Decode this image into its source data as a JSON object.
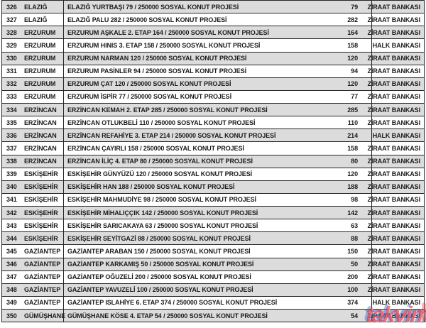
{
  "colors": {
    "row_alt_bg": "#dcdcdc",
    "row_bg": "#ffffff",
    "border": "#262626",
    "text": "#1b1b1b",
    "watermark_red": "#de2630",
    "watermark_blue": "#4664d2"
  },
  "watermark": {
    "text": "takvim"
  },
  "table": {
    "columns": [
      "no",
      "city",
      "project",
      "units",
      "bank"
    ],
    "rows": [
      {
        "no": "326",
        "city": "ELAZIĞ",
        "project": "ELAZIĞ YURTBAŞI 79 / 250000 SOSYAL KONUT PROJESİ",
        "units": "79",
        "bank": "ZİRAAT BANKASI"
      },
      {
        "no": "327",
        "city": "ELAZIĞ",
        "project": "ELAZIĞ PALU 282 / 250000 SOSYAL KONUT PROJESİ",
        "units": "282",
        "bank": "ZİRAAT BANKASI"
      },
      {
        "no": "328",
        "city": "ERZURUM",
        "project": "ERZURUM AŞKALE 2. ETAP 164 / 250000 SOSYAL KONUT PROJESİ",
        "units": "164",
        "bank": "ZİRAAT BANKASI"
      },
      {
        "no": "329",
        "city": "ERZURUM",
        "project": "ERZURUM HINIS 3. ETAP 158 / 250000 SOSYAL KONUT PROJESİ",
        "units": "158",
        "bank": "HALK BANKASI"
      },
      {
        "no": "330",
        "city": "ERZURUM",
        "project": "ERZURUM NARMAN 120 / 250000 SOSYAL KONUT PROJESİ",
        "units": "120",
        "bank": "ZİRAAT BANKASI"
      },
      {
        "no": "331",
        "city": "ERZURUM",
        "project": "ERZURUM PASİNLER 94 / 250000 SOSYAL KONUT PROJESİ",
        "units": "94",
        "bank": "ZİRAAT BANKASI"
      },
      {
        "no": "332",
        "city": "ERZURUM",
        "project": "ERZURUM ÇAT 120 / 250000 SOSYAL KONUT PROJESİ",
        "units": "120",
        "bank": "ZİRAAT BANKASI"
      },
      {
        "no": "333",
        "city": "ERZURUM",
        "project": "ERZURUM İSPİR 77 / 250000 SOSYAL KONUT PROJESİ",
        "units": "77",
        "bank": "ZİRAAT BANKASI"
      },
      {
        "no": "334",
        "city": "ERZİNCAN",
        "project": "ERZİNCAN KEMAH 2. ETAP 285 / 250000 SOSYAL KONUT PROJESİ",
        "units": "285",
        "bank": "ZİRAAT BANKASI"
      },
      {
        "no": "335",
        "city": "ERZİNCAN",
        "project": "ERZİNCAN OTLUKBELİ 110 / 250000 SOSYAL KONUT PROJESİ",
        "units": "110",
        "bank": "ZİRAAT BANKASI"
      },
      {
        "no": "336",
        "city": "ERZİNCAN",
        "project": "ERZİNCAN REFAHİYE 3. ETAP 214 / 250000 SOSYAL KONUT PROJESİ",
        "units": "214",
        "bank": "HALK BANKASI"
      },
      {
        "no": "337",
        "city": "ERZİNCAN",
        "project": "ERZİNCAN ÇAYIRLI 158 / 250000 SOSYAL KONUT PROJESİ",
        "units": "158",
        "bank": "ZİRAAT BANKASI"
      },
      {
        "no": "338",
        "city": "ERZİNCAN",
        "project": "ERZİNCAN İLİÇ 4. ETAP 80 / 250000 SOSYAL KONUT PROJESİ",
        "units": "80",
        "bank": "ZİRAAT BANKASI"
      },
      {
        "no": "339",
        "city": "ESKİŞEHİR",
        "project": "ESKİŞEHİR GÜNYÜZÜ 120 / 250000 SOSYAL KONUT PROJESİ",
        "units": "120",
        "bank": "ZİRAAT BANKASI"
      },
      {
        "no": "340",
        "city": "ESKİŞEHİR",
        "project": "ESKİŞEHİR HAN 188 / 250000 SOSYAL KONUT PROJESİ",
        "units": "188",
        "bank": "ZİRAAT BANKASI"
      },
      {
        "no": "341",
        "city": "ESKİŞEHİR",
        "project": "ESKİŞEHİR MAHMUDİYE 98 / 250000 SOSYAL KONUT PROJESİ",
        "units": "98",
        "bank": "ZİRAAT BANKASI"
      },
      {
        "no": "342",
        "city": "ESKİŞEHİR",
        "project": "ESKİŞEHİR MİHALIÇÇIK 142 / 250000 SOSYAL KONUT PROJESİ",
        "units": "142",
        "bank": "ZİRAAT BANKASI"
      },
      {
        "no": "343",
        "city": "ESKİŞEHİR",
        "project": "ESKİŞEHİR SARICAKAYA 63 / 250000 SOSYAL KONUT PROJESİ",
        "units": "63",
        "bank": "ZİRAAT BANKASI"
      },
      {
        "no": "344",
        "city": "ESKİŞEHİR",
        "project": "ESKİŞEHİR SEYİTGAZİ 88 / 250000 SOSYAL KONUT PROJESİ",
        "units": "88",
        "bank": "ZİRAAT BANKASI"
      },
      {
        "no": "345",
        "city": "GAZİANTEP",
        "project": "GAZİANTEP ARABAN 150 / 250000 SOSYAL KONUT PROJESİ",
        "units": "150",
        "bank": "ZİRAAT BANKASI"
      },
      {
        "no": "346",
        "city": "GAZİANTEP",
        "project": "GAZİANTEP KARKAMIŞ 50 / 250000 SOSYAL KONUT PROJESİ",
        "units": "50",
        "bank": "ZİRAAT BANKASI"
      },
      {
        "no": "347",
        "city": "GAZİANTEP",
        "project": "GAZİANTEP OĞUZELİ 200 / 250000 SOSYAL KONUT PROJESİ",
        "units": "200",
        "bank": "ZİRAAT BANKASI"
      },
      {
        "no": "348",
        "city": "GAZİANTEP",
        "project": "GAZİANTEP YAVUZELİ 100 / 250000 SOSYAL KONUT PROJESİ",
        "units": "100",
        "bank": "ZİRAAT BANKASI"
      },
      {
        "no": "349",
        "city": "GAZİANTEP",
        "project": "GAZİANTEP ISLAHİYE 6. ETAP 374 / 250000 SOSYAL KONUT PROJESİ",
        "units": "374",
        "bank": "HALK BANKASI"
      },
      {
        "no": "350",
        "city": "GÜMÜŞHANE",
        "project": "GÜMÜŞHANE KÖSE 4. ETAP 54 / 250000 SOSYAL KONUT PROJESİ",
        "units": "54",
        "bank": "ZİRAAT BANKASI"
      }
    ]
  }
}
